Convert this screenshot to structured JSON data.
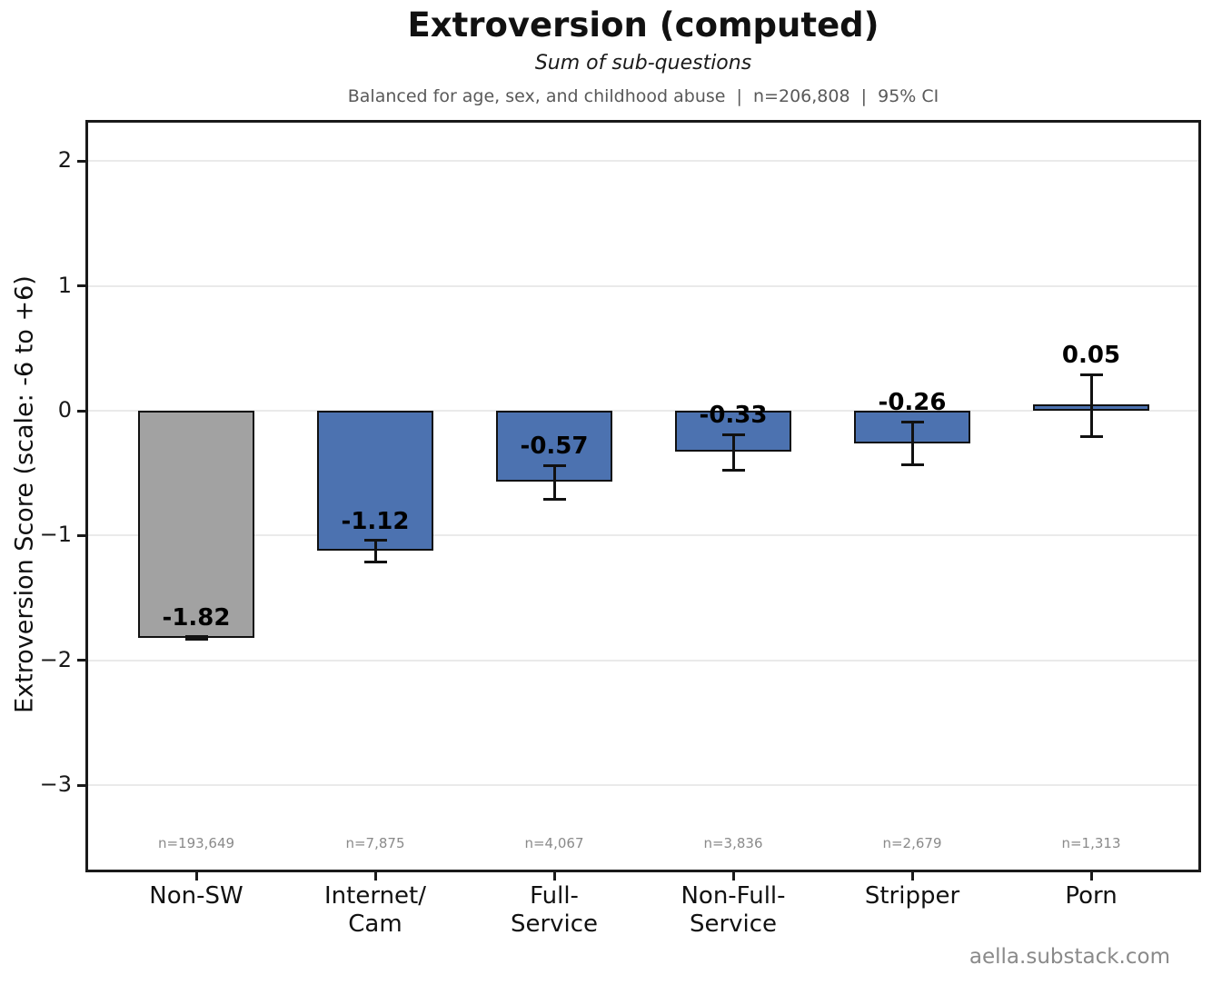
{
  "header": {
    "title": "Extroversion (computed)",
    "subtitle": "Sum of sub-questions",
    "note": "Balanced for age, sex, and childhood abuse  |  n=206,808  |  95% CI"
  },
  "footer": {
    "credit": "aella.substack.com"
  },
  "chart_data": {
    "type": "bar",
    "title": "Extroversion (computed)",
    "subtitle": "Sum of sub-questions",
    "note": "Balanced for age, sex, and childhood abuse | n=206,808 | 95% CI",
    "ylabel": "Extroversion Score (scale: -6 to +6)",
    "xlabel": "",
    "ylim": [
      -3.675,
      2.307
    ],
    "yticks": [
      2,
      1,
      0,
      -1,
      -2,
      -3
    ],
    "ytick_labels": [
      "2",
      "1",
      "0",
      "−1",
      "−2",
      "−3"
    ],
    "grid": true,
    "legend": "none",
    "categories": [
      "Non-SW",
      "Internet/\nCam",
      "Full-\nService",
      "Non-Full-\nService",
      "Stripper",
      "Porn"
    ],
    "values": [
      -1.82,
      -1.12,
      -0.57,
      -0.33,
      -0.26,
      0.05
    ],
    "value_labels": [
      "-1.82",
      "-1.12",
      "-0.57",
      "-0.33",
      "-0.26",
      "0.05"
    ],
    "ci_low": [
      -1.83,
      -1.21,
      -0.71,
      -0.48,
      -0.43,
      -0.21
    ],
    "ci_high": [
      -1.81,
      -1.04,
      -0.44,
      -0.19,
      -0.09,
      0.29
    ],
    "sample_sizes": [
      "n=193,649",
      "n=7,875",
      "n=4,067",
      "n=3,836",
      "n=2,679",
      "n=1,313"
    ],
    "bar_colors": [
      "#a2a2a2",
      "#4c72b0",
      "#4c72b0",
      "#4c72b0",
      "#4c72b0",
      "#4c72b0"
    ],
    "colors": {
      "bar_blue": "#4c72b0",
      "bar_gray": "#a2a2a2",
      "bar_border": "#111111",
      "error": "#111111",
      "grid": "#eaeaea",
      "axis": "#1a1a1a",
      "tick_label": "#1a1a1a",
      "note_text": "#595959",
      "muted_text": "#8a8a8a"
    }
  }
}
